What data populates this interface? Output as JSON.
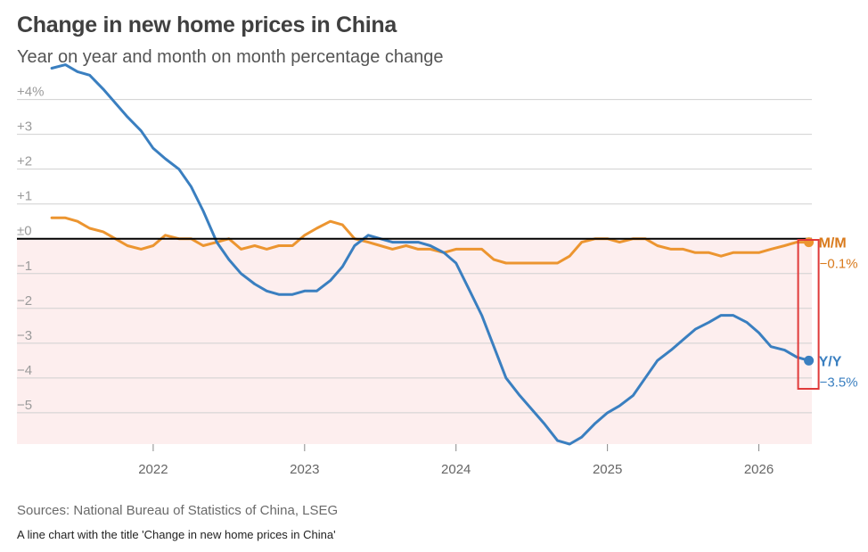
{
  "title": "Change in new home prices in China",
  "subtitle": "Year on year and month on month percentage change",
  "source": "Sources: National Bureau of Statistics of China, LSEG",
  "alt_text": "A line chart with the title 'Change in new home prices in China'",
  "colors": {
    "yy": "#3a7fc0",
    "mm": "#ec9530",
    "mm_text": "#d97a1c",
    "negative_fill": "#fdeeee",
    "grid": "#d0d0d0",
    "zero": "#000000",
    "highlight": "#e03a3a"
  },
  "chart_data": {
    "type": "line",
    "title": "Change in new home prices in China",
    "subtitle": "Year on year and month on month percentage change",
    "xlabel": "",
    "ylabel": "",
    "x_ticks": [
      "2022",
      "2023",
      "2024",
      "2025",
      "2026"
    ],
    "y_ticks": [
      {
        "value": 4,
        "label": "+4%"
      },
      {
        "value": 3,
        "label": "+3"
      },
      {
        "value": 2,
        "label": "+2"
      },
      {
        "value": 1,
        "label": "+1"
      },
      {
        "value": 0,
        "label": "±0"
      },
      {
        "value": -1,
        "label": "−1"
      },
      {
        "value": -2,
        "label": "−2"
      },
      {
        "value": -3,
        "label": "−3"
      },
      {
        "value": -4,
        "label": "−4"
      },
      {
        "value": -5,
        "label": "−5"
      }
    ],
    "ylim": [
      -5.9,
      4.4
    ],
    "xlim": [
      2021.1,
      2026.35
    ],
    "grid": true,
    "negative_region_shaded": true,
    "series": [
      {
        "name": "Y/Y",
        "end_label": "Y/Y",
        "end_value_label": "−3.5%",
        "points": [
          [
            2021.33,
            4.9
          ],
          [
            2021.42,
            5.0
          ],
          [
            2021.5,
            4.8
          ],
          [
            2021.58,
            4.7
          ],
          [
            2021.67,
            4.3
          ],
          [
            2021.75,
            3.9
          ],
          [
            2021.83,
            3.5
          ],
          [
            2021.92,
            3.1
          ],
          [
            2022.0,
            2.6
          ],
          [
            2022.08,
            2.3
          ],
          [
            2022.17,
            2.0
          ],
          [
            2022.25,
            1.5
          ],
          [
            2022.33,
            0.8
          ],
          [
            2022.42,
            -0.1
          ],
          [
            2022.5,
            -0.6
          ],
          [
            2022.58,
            -1.0
          ],
          [
            2022.67,
            -1.3
          ],
          [
            2022.75,
            -1.5
          ],
          [
            2022.83,
            -1.6
          ],
          [
            2022.92,
            -1.6
          ],
          [
            2023.0,
            -1.5
          ],
          [
            2023.08,
            -1.5
          ],
          [
            2023.17,
            -1.2
          ],
          [
            2023.25,
            -0.8
          ],
          [
            2023.33,
            -0.2
          ],
          [
            2023.42,
            0.1
          ],
          [
            2023.5,
            0.0
          ],
          [
            2023.58,
            -0.1
          ],
          [
            2023.67,
            -0.1
          ],
          [
            2023.75,
            -0.1
          ],
          [
            2023.83,
            -0.2
          ],
          [
            2023.92,
            -0.4
          ],
          [
            2024.0,
            -0.7
          ],
          [
            2024.08,
            -1.4
          ],
          [
            2024.17,
            -2.2
          ],
          [
            2024.25,
            -3.1
          ],
          [
            2024.33,
            -4.0
          ],
          [
            2024.42,
            -4.5
          ],
          [
            2024.5,
            -4.9
          ],
          [
            2024.58,
            -5.3
          ],
          [
            2024.67,
            -5.8
          ],
          [
            2024.75,
            -5.9
          ],
          [
            2024.83,
            -5.7
          ],
          [
            2024.92,
            -5.3
          ],
          [
            2025.0,
            -5.0
          ],
          [
            2025.08,
            -4.8
          ],
          [
            2025.17,
            -4.5
          ],
          [
            2025.25,
            -4.0
          ],
          [
            2025.33,
            -3.5
          ],
          [
            2025.42,
            -3.2
          ],
          [
            2025.5,
            -2.9
          ],
          [
            2025.58,
            -2.6
          ],
          [
            2025.67,
            -2.4
          ],
          [
            2025.75,
            -2.2
          ],
          [
            2025.83,
            -2.2
          ],
          [
            2025.92,
            -2.4
          ],
          [
            2026.0,
            -2.7
          ],
          [
            2026.08,
            -3.1
          ],
          [
            2026.17,
            -3.2
          ],
          [
            2026.25,
            -3.4
          ],
          [
            2026.33,
            -3.5
          ]
        ]
      },
      {
        "name": "M/M",
        "end_label": "M/M",
        "end_value_label": "−0.1%",
        "points": [
          [
            2021.33,
            0.6
          ],
          [
            2021.42,
            0.6
          ],
          [
            2021.5,
            0.5
          ],
          [
            2021.58,
            0.3
          ],
          [
            2021.67,
            0.2
          ],
          [
            2021.75,
            0.0
          ],
          [
            2021.83,
            -0.2
          ],
          [
            2021.92,
            -0.3
          ],
          [
            2022.0,
            -0.2
          ],
          [
            2022.08,
            0.1
          ],
          [
            2022.17,
            0.0
          ],
          [
            2022.25,
            0.0
          ],
          [
            2022.33,
            -0.2
          ],
          [
            2022.42,
            -0.1
          ],
          [
            2022.5,
            0.0
          ],
          [
            2022.58,
            -0.3
          ],
          [
            2022.67,
            -0.2
          ],
          [
            2022.75,
            -0.3
          ],
          [
            2022.83,
            -0.2
          ],
          [
            2022.92,
            -0.2
          ],
          [
            2023.0,
            0.1
          ],
          [
            2023.08,
            0.3
          ],
          [
            2023.17,
            0.5
          ],
          [
            2023.25,
            0.4
          ],
          [
            2023.33,
            0.0
          ],
          [
            2023.42,
            -0.1
          ],
          [
            2023.5,
            -0.2
          ],
          [
            2023.58,
            -0.3
          ],
          [
            2023.67,
            -0.2
          ],
          [
            2023.75,
            -0.3
          ],
          [
            2023.83,
            -0.3
          ],
          [
            2023.92,
            -0.4
          ],
          [
            2024.0,
            -0.3
          ],
          [
            2024.08,
            -0.3
          ],
          [
            2024.17,
            -0.3
          ],
          [
            2024.25,
            -0.6
          ],
          [
            2024.33,
            -0.7
          ],
          [
            2024.42,
            -0.7
          ],
          [
            2024.5,
            -0.7
          ],
          [
            2024.58,
            -0.7
          ],
          [
            2024.67,
            -0.7
          ],
          [
            2024.75,
            -0.5
          ],
          [
            2024.83,
            -0.1
          ],
          [
            2024.92,
            0.0
          ],
          [
            2025.0,
            0.0
          ],
          [
            2025.08,
            -0.1
          ],
          [
            2025.17,
            0.0
          ],
          [
            2025.25,
            0.0
          ],
          [
            2025.33,
            -0.2
          ],
          [
            2025.42,
            -0.3
          ],
          [
            2025.5,
            -0.3
          ],
          [
            2025.58,
            -0.4
          ],
          [
            2025.67,
            -0.4
          ],
          [
            2025.75,
            -0.5
          ],
          [
            2025.83,
            -0.4
          ],
          [
            2025.92,
            -0.4
          ],
          [
            2026.0,
            -0.4
          ],
          [
            2026.08,
            -0.3
          ],
          [
            2026.17,
            -0.2
          ],
          [
            2026.25,
            -0.1
          ],
          [
            2026.33,
            -0.1
          ]
        ]
      }
    ]
  }
}
